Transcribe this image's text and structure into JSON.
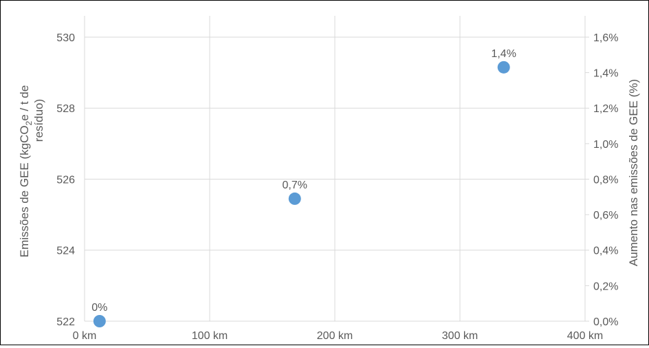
{
  "chart_data": {
    "type": "scatter",
    "title": "",
    "xlabel": "",
    "ylabel_left": {
      "prefix": "Emissões de GEE (kgCO",
      "subscript": "2",
      "suffix": "e / t de",
      "line2": "resíduo)"
    },
    "ylabel_right": "Aumento nas emissões de GEE (%)",
    "xlim": [
      0,
      400
    ],
    "ylim_left": [
      522,
      530.6
    ],
    "ylim_right": [
      0.0,
      0.0172
    ],
    "grid": true,
    "legend": "none",
    "x_ticks": [
      {
        "value": 0,
        "label": "0 km"
      },
      {
        "value": 100,
        "label": "100 km"
      },
      {
        "value": 200,
        "label": "200 km"
      },
      {
        "value": 300,
        "label": "300 km"
      },
      {
        "value": 400,
        "label": "400 km"
      }
    ],
    "y_left_ticks": [
      {
        "value": 522,
        "label": "522"
      },
      {
        "value": 524,
        "label": "524"
      },
      {
        "value": 526,
        "label": "526"
      },
      {
        "value": 528,
        "label": "528"
      },
      {
        "value": 530,
        "label": "530"
      }
    ],
    "y_right_ticks": [
      {
        "value": 0.0,
        "label": "0,0%"
      },
      {
        "value": 0.002,
        "label": "0,2%"
      },
      {
        "value": 0.004,
        "label": "0,4%"
      },
      {
        "value": 0.006,
        "label": "0,6%"
      },
      {
        "value": 0.008,
        "label": "0,8%"
      },
      {
        "value": 0.01,
        "label": "1,0%"
      },
      {
        "value": 0.012,
        "label": "1,2%"
      },
      {
        "value": 0.014,
        "label": "1,4%"
      },
      {
        "value": 0.016,
        "label": "1,6%"
      }
    ],
    "points": [
      {
        "x": 12,
        "y": 522.0,
        "label": "0%"
      },
      {
        "x": 168,
        "y": 525.45,
        "label": "0,7%"
      },
      {
        "x": 335,
        "y": 529.15,
        "label": "1,4%"
      }
    ],
    "colors": {
      "marker": "#5B9BD5",
      "grid": "#D9D9D9",
      "text": "#595959"
    }
  }
}
